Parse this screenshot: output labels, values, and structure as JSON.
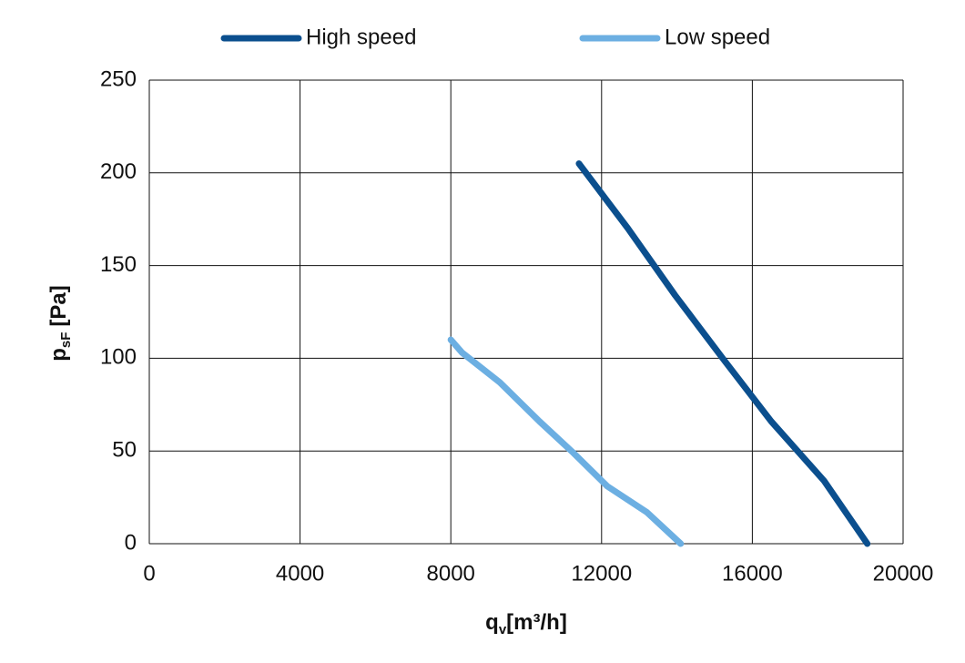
{
  "chart_data": {
    "type": "line",
    "x_label": "q",
    "x_label_sub": "v",
    "x_label_unit": "[m³/h]",
    "y_label": "p",
    "y_label_sub": "sF",
    "y_label_unit": "[Pa]",
    "xlim": [
      0,
      20000
    ],
    "xticks": [
      0,
      4000,
      8000,
      12000,
      16000,
      20000
    ],
    "ylim": [
      0,
      250
    ],
    "yticks": [
      0,
      50,
      100,
      150,
      200,
      250
    ],
    "grid": true,
    "series": [
      {
        "name": "High speed",
        "color": "#0b4f8e",
        "x": [
          11400,
          12700,
          13950,
          15250,
          16500,
          17900,
          19050
        ],
        "values": [
          205,
          170,
          134,
          99,
          66,
          34,
          0
        ]
      },
      {
        "name": "Low speed",
        "color": "#6cafe2",
        "x": [
          8000,
          8300,
          9300,
          10350,
          11250,
          12150,
          13200,
          14100
        ],
        "values": [
          110,
          103,
          87,
          66,
          49,
          31,
          17,
          0
        ]
      }
    ]
  }
}
